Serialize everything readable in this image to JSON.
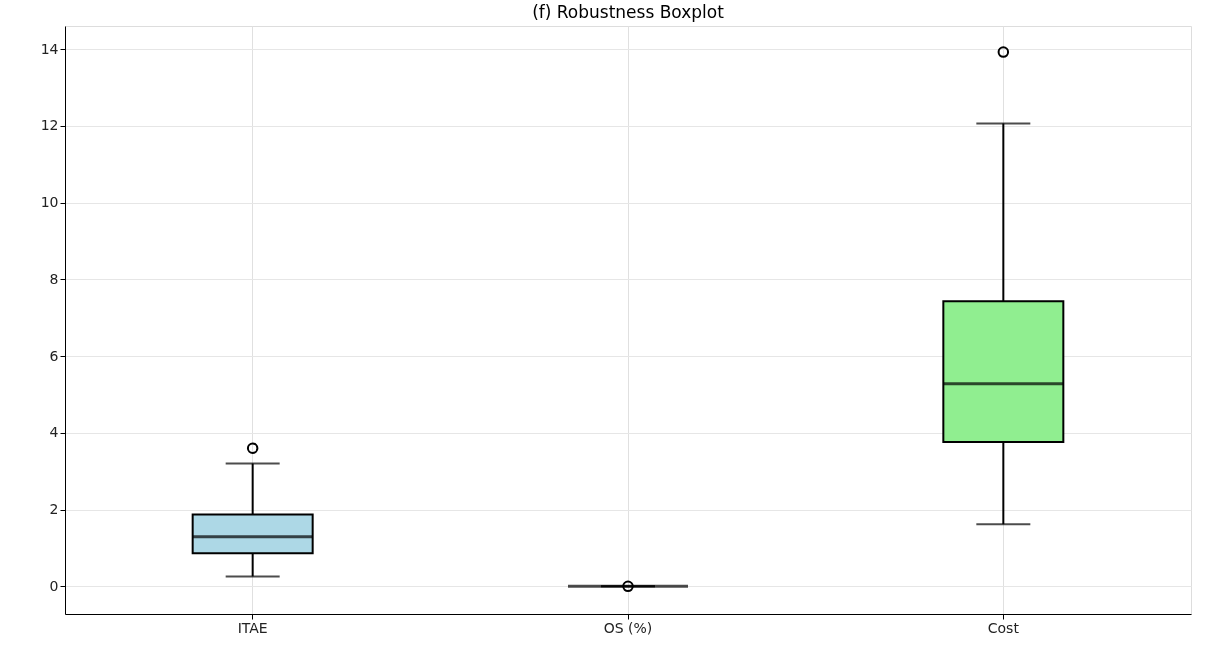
{
  "chart_data": {
    "type": "box",
    "title": "(f) Robustness Boxplot",
    "categories": [
      "ITAE",
      "OS (%)",
      "Cost"
    ],
    "boxes": [
      {
        "low": 0.26,
        "q1": 0.86,
        "median": 1.29,
        "q3": 1.87,
        "high": 3.2,
        "outliers": [
          3.6
        ]
      },
      {
        "low": 0,
        "q1": 0,
        "median": 0,
        "q3": 0,
        "high": 0,
        "outliers": [
          0
        ]
      },
      {
        "low": 1.62,
        "q1": 3.76,
        "median": 5.28,
        "q3": 7.43,
        "high": 12.06,
        "outliers": [
          13.92
        ]
      }
    ],
    "colors": [
      "#add8e6",
      null,
      "#90ee90"
    ],
    "ylim": [
      -0.72,
      14.6
    ],
    "yticks": [
      0,
      2,
      4,
      6,
      8,
      10,
      12,
      14
    ],
    "grid": true
  }
}
